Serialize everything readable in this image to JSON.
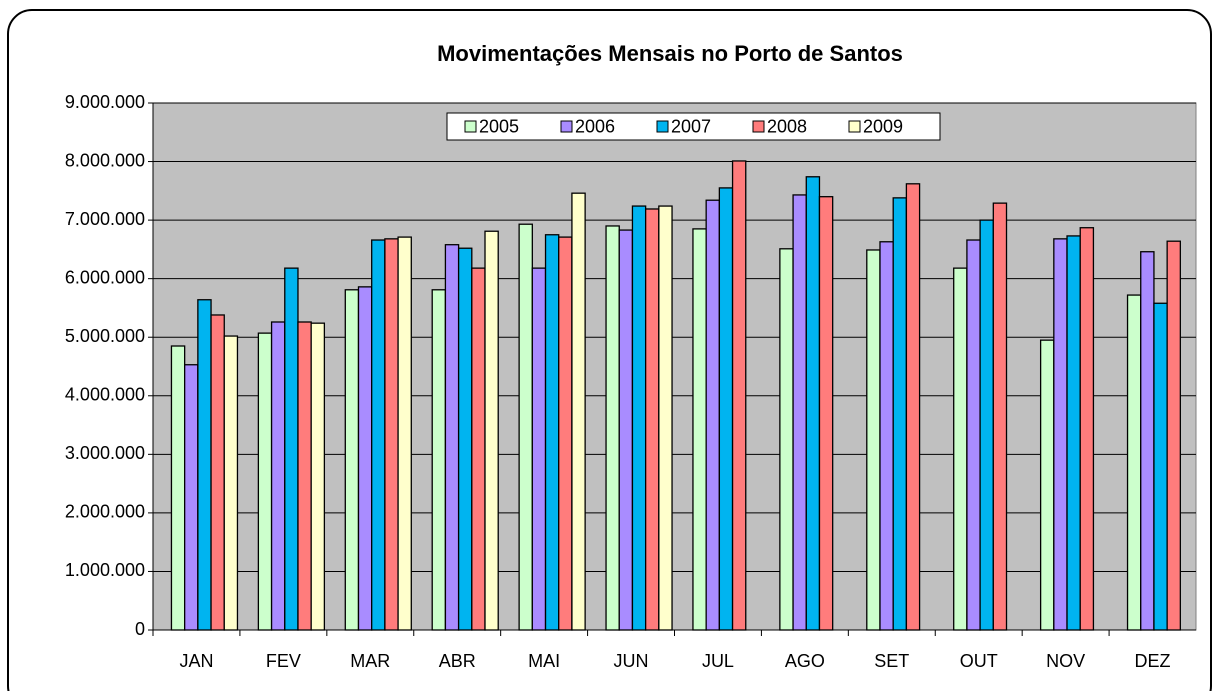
{
  "chart_data": {
    "type": "bar",
    "title": "Movimentações Mensais no Porto de Santos",
    "categories": [
      "JAN",
      "FEV",
      "MAR",
      "ABR",
      "MAI",
      "JUN",
      "JUL",
      "AGO",
      "SET",
      "OUT",
      "NOV",
      "DEZ"
    ],
    "series": [
      {
        "name": "2005",
        "color": "#ccffcc",
        "values": [
          4850000,
          5070000,
          5810000,
          5810000,
          6930000,
          6900000,
          6850000,
          6510000,
          6490000,
          6180000,
          4950000,
          5720000
        ]
      },
      {
        "name": "2006",
        "color": "#a98cff",
        "values": [
          4530000,
          5260000,
          5860000,
          6580000,
          6180000,
          6830000,
          7340000,
          7430000,
          6630000,
          6660000,
          6680000,
          6460000
        ]
      },
      {
        "name": "2007",
        "color": "#00b4f0",
        "values": [
          5640000,
          6180000,
          6660000,
          6520000,
          6750000,
          7240000,
          7550000,
          7740000,
          7380000,
          7000000,
          6730000,
          5580000
        ]
      },
      {
        "name": "2008",
        "color": "#ff7c7c",
        "values": [
          5380000,
          5260000,
          6680000,
          6180000,
          6710000,
          7190000,
          8010000,
          7400000,
          7620000,
          7290000,
          6870000,
          6640000
        ]
      },
      {
        "name": "2009",
        "color": "#ffffcc",
        "values": [
          5020000,
          5240000,
          6710000,
          6810000,
          7460000,
          7240000,
          null,
          null,
          null,
          null,
          null,
          null
        ]
      }
    ],
    "ylim": [
      0,
      9000000
    ],
    "yticks": [
      0,
      {
        "value": 1000000,
        "label": "1.000.000"
      },
      {
        "value": 2000000,
        "label": "2.000.000"
      },
      {
        "value": 3000000,
        "label": "3.000.000"
      },
      {
        "value": 4000000,
        "label": "4.000.000"
      },
      {
        "value": 5000000,
        "label": "5.000.000"
      },
      {
        "value": 6000000,
        "label": "6.000.000"
      },
      {
        "value": 7000000,
        "label": "7.000.000"
      },
      {
        "value": 8000000,
        "label": "8.000.000"
      },
      {
        "value": 9000000,
        "label": "9.000.000"
      }
    ],
    "grid": true,
    "legend": "top",
    "plot_background": "#c0c0c0"
  }
}
